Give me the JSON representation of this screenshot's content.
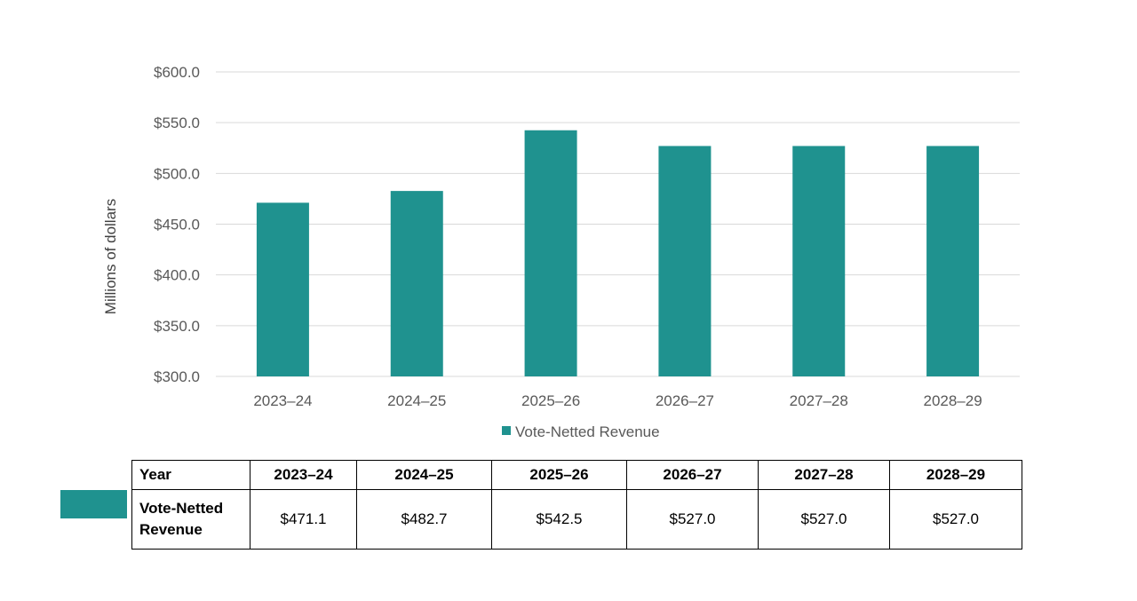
{
  "colors": {
    "bar": "#1f928f",
    "grid": "#d9d9d9",
    "axis_text": "#595959"
  },
  "chart_data": {
    "type": "bar",
    "categories": [
      "2023–24",
      "2024–25",
      "2025–26",
      "2026–27",
      "2027–28",
      "2028–29"
    ],
    "series": [
      {
        "name": "Vote-Netted Revenue",
        "values": [
          471.1,
          482.7,
          542.5,
          527.0,
          527.0,
          527.0
        ]
      }
    ],
    "ylabel": "Millions of dollars",
    "xlabel": "",
    "ylim": [
      300,
      600
    ],
    "yticks": [
      "$300.0",
      "$350.0",
      "$400.0",
      "$450.0",
      "$500.0",
      "$550.0",
      "$600.0"
    ],
    "grid": true,
    "legend": "bottom-center"
  },
  "table": {
    "header_label": "Year",
    "columns": [
      "2023–24",
      "2024–25",
      "2025–26",
      "2026–27",
      "2027–28",
      "2028–29"
    ],
    "row_label": "Vote-Netted Revenue",
    "row_values": [
      "$471.1",
      "$482.7",
      "$542.5",
      "$527.0",
      "$527.0",
      "$527.0"
    ]
  }
}
